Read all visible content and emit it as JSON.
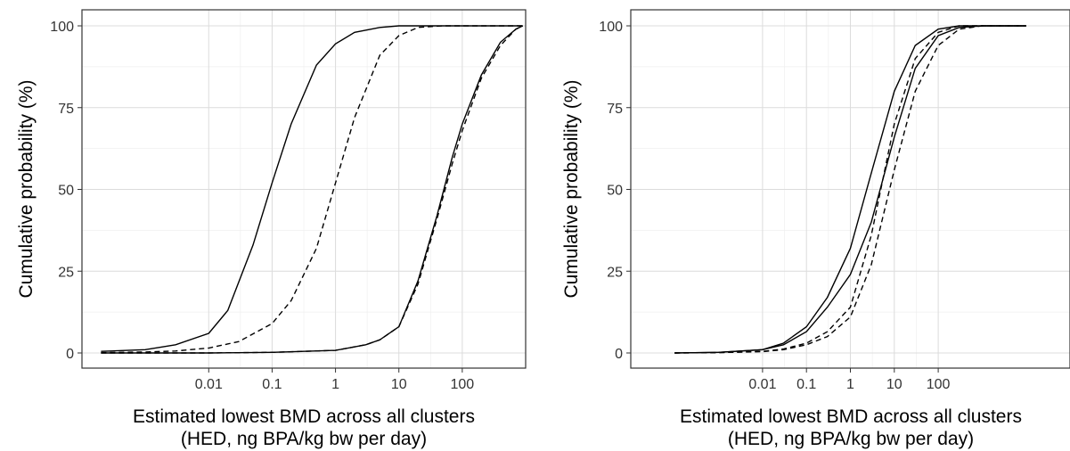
{
  "chart_data": [
    {
      "type": "line",
      "panel": "left",
      "xlabel": "Estimated lowest BMD across all clusters",
      "xlabel_line2": "(HED, ng BPA/kg bw per day)",
      "ylabel": "Cumulative probability (%)",
      "x_scale": "log",
      "xlim": [
        0.0001,
        1000
      ],
      "ylim": [
        0,
        100
      ],
      "x_ticks": [
        {
          "value": 0.01,
          "label": "0.01"
        },
        {
          "value": 0.1,
          "label": "0.1"
        },
        {
          "value": 1,
          "label": "1"
        },
        {
          "value": 10,
          "label": "10"
        },
        {
          "value": 100,
          "label": "100"
        }
      ],
      "y_ticks": [
        {
          "value": 0,
          "label": "0"
        },
        {
          "value": 25,
          "label": "25"
        },
        {
          "value": 50,
          "label": "50"
        },
        {
          "value": 75,
          "label": "75"
        },
        {
          "value": 100,
          "label": "100"
        }
      ],
      "grid": true,
      "series": [
        {
          "line_style": "solid",
          "x": [
            0.0002,
            0.001,
            0.003,
            0.01,
            0.02,
            0.05,
            0.1,
            0.2,
            0.5,
            1,
            2,
            5,
            10,
            30,
            100,
            900
          ],
          "y": [
            0.5,
            1,
            2.5,
            6,
            13,
            33,
            52,
            70,
            88,
            94.5,
            98,
            99.5,
            100,
            100,
            100,
            100
          ]
        },
        {
          "line_style": "dashed",
          "x": [
            0.0002,
            0.001,
            0.003,
            0.01,
            0.03,
            0.1,
            0.2,
            0.5,
            1,
            2,
            5,
            10,
            20,
            50,
            100,
            900
          ],
          "y": [
            0.1,
            0.3,
            0.6,
            1.5,
            3.5,
            9,
            16,
            32,
            52,
            72,
            91,
            97,
            99.5,
            100,
            100,
            100
          ]
        },
        {
          "line_style": "solid",
          "x": [
            0.0002,
            0.01,
            0.1,
            1,
            3,
            5,
            10,
            20,
            40,
            70,
            100,
            200,
            400,
            700,
            900
          ],
          "y": [
            0,
            0,
            0.2,
            0.8,
            2.5,
            4,
            8,
            22,
            42,
            60,
            70,
            85,
            95,
            99,
            100
          ]
        },
        {
          "line_style": "dashed",
          "x": [
            0.0002,
            0.01,
            0.1,
            1,
            3,
            5,
            10,
            20,
            40,
            70,
            100,
            200,
            400,
            700,
            900
          ],
          "y": [
            0,
            0,
            0.2,
            0.8,
            2.5,
            4,
            8,
            21,
            41,
            58,
            68,
            84,
            94,
            99,
            100
          ]
        }
      ]
    },
    {
      "type": "line",
      "panel": "right",
      "xlabel": "Estimated lowest BMD across all clusters",
      "xlabel_line2": "(HED, ng BPA/kg bw per day)",
      "ylabel": "Cumulative probability (%)",
      "x_scale": "log",
      "xlim": [
        1e-05,
        100000
      ],
      "ylim": [
        0,
        100
      ],
      "x_ticks": [
        {
          "value": 0.01,
          "label": "0.01"
        },
        {
          "value": 0.1,
          "label": "0.1"
        },
        {
          "value": 1,
          "label": "1"
        },
        {
          "value": 10,
          "label": "10"
        },
        {
          "value": 100,
          "label": "100"
        }
      ],
      "y_ticks": [
        {
          "value": 0,
          "label": "0"
        },
        {
          "value": 25,
          "label": "25"
        },
        {
          "value": 50,
          "label": "50"
        },
        {
          "value": 75,
          "label": "75"
        },
        {
          "value": 100,
          "label": "100"
        }
      ],
      "grid": true,
      "series": [
        {
          "line_style": "solid",
          "x": [
            0.0001,
            0.001,
            0.01,
            0.03,
            0.1,
            0.3,
            1,
            3,
            10,
            30,
            100,
            300,
            1000,
            10000
          ],
          "y": [
            0,
            0.2,
            1,
            3,
            8,
            17,
            32,
            55,
            80,
            94,
            99,
            100,
            100,
            100
          ]
        },
        {
          "line_style": "solid",
          "x": [
            0.0001,
            0.001,
            0.01,
            0.03,
            0.1,
            0.3,
            1,
            3,
            10,
            30,
            100,
            300,
            1000,
            10000
          ],
          "y": [
            0,
            0.2,
            1,
            2.5,
            6.5,
            14,
            24,
            40,
            66,
            87,
            97,
            99.5,
            100,
            100
          ]
        },
        {
          "line_style": "dashed",
          "x": [
            0.0001,
            0.001,
            0.01,
            0.03,
            0.1,
            0.3,
            1,
            3,
            10,
            30,
            100,
            300,
            1000,
            10000
          ],
          "y": [
            0,
            0.1,
            0.5,
            1.2,
            3,
            6.5,
            14,
            36,
            70,
            90,
            98,
            100,
            100,
            100
          ]
        },
        {
          "line_style": "dashed",
          "x": [
            0.0001,
            0.001,
            0.01,
            0.03,
            0.1,
            0.3,
            1,
            3,
            10,
            30,
            100,
            300,
            1000,
            10000
          ],
          "y": [
            0,
            0.1,
            0.4,
            1,
            2.5,
            5,
            11,
            27,
            56,
            80,
            94,
            99,
            100,
            100
          ]
        }
      ]
    }
  ]
}
